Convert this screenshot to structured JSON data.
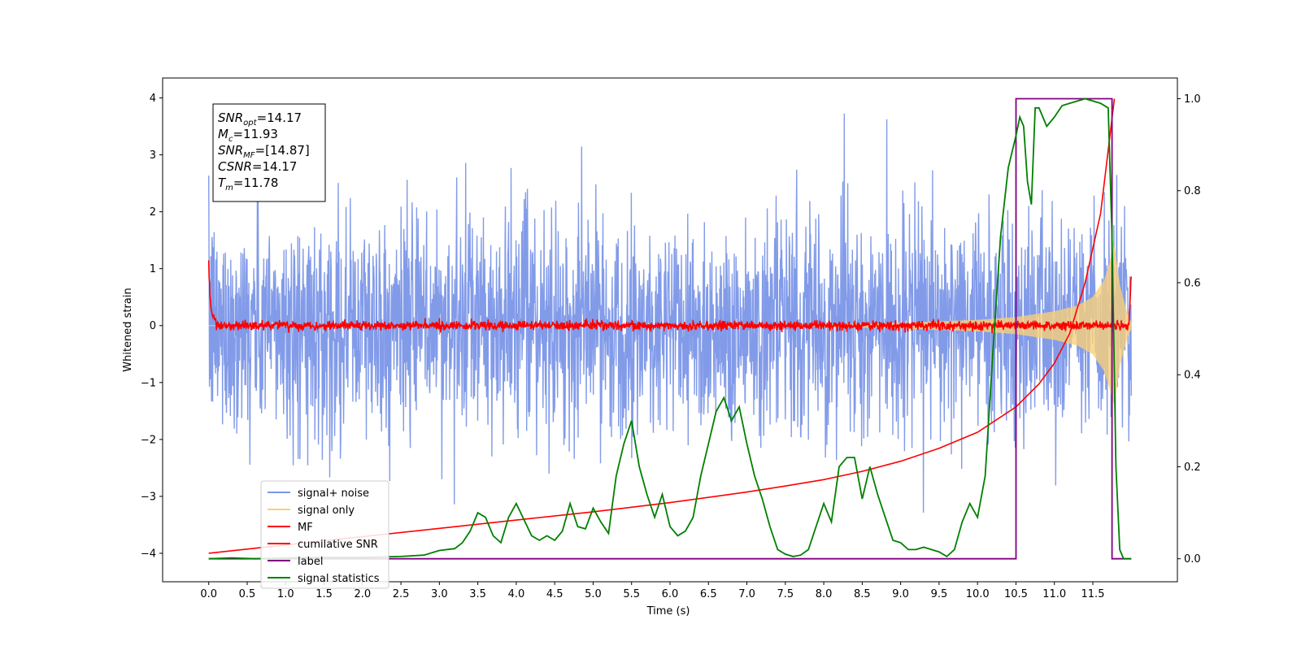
{
  "chart_data": {
    "type": "line",
    "xlabel": "Time (s)",
    "ylabel": "Whitened strain",
    "xlim": [
      -0.6,
      12.6
    ],
    "ylim": [
      -4.5,
      4.35
    ],
    "ylim_right": [
      -0.05,
      1.045
    ],
    "x_ticks": [
      "0.0",
      "0.5",
      "1.0",
      "1.5",
      "2.0",
      "2.5",
      "3.0",
      "3.5",
      "4.0",
      "4.5",
      "5.0",
      "5.5",
      "6.0",
      "6.5",
      "7.0",
      "7.5",
      "8.0",
      "8.5",
      "9.0",
      "9.5",
      "10.0",
      "10.5",
      "11.0",
      "11.5"
    ],
    "y_ticks_left": [
      "4",
      "3",
      "2",
      "1",
      "0",
      "−1",
      "−2",
      "−3",
      "−4"
    ],
    "y_ticks_right": [
      "1.0",
      "0.8",
      "0.6",
      "0.4",
      "0.2",
      "0.0"
    ],
    "grid": false,
    "legend_position": "lower-left",
    "info_box": [
      {
        "main": "SNR",
        "sub": "opt",
        "value": "=14.17"
      },
      {
        "main": "M",
        "sub": "c",
        "value": "=11.93"
      },
      {
        "main": "SNR",
        "sub": "MF",
        "value": "=[14.87]"
      },
      {
        "main": "CSNR",
        "sub": "",
        "value": "=14.17"
      },
      {
        "main": "T",
        "sub": "m",
        "value": "=11.78"
      }
    ],
    "series": [
      {
        "name": "signal+ noise",
        "color": "#7b96e8",
        "axis": "left",
        "amplitude_sd": 0.95,
        "x_range": [
          0.0,
          12.0
        ]
      },
      {
        "name": "signal only",
        "color": "#f8cf7a",
        "axis": "left",
        "envelope": {
          "t": [
            0,
            2,
            4,
            6,
            8,
            9,
            10,
            10.5,
            11,
            11.3,
            11.5,
            11.65,
            11.72,
            11.78,
            11.85,
            11.95,
            12.0
          ],
          "a": [
            0.0,
            0.0,
            0.0,
            0.0,
            0.02,
            0.05,
            0.1,
            0.15,
            0.25,
            0.35,
            0.5,
            0.8,
            1.1,
            1.4,
            0.7,
            0.2,
            0.05
          ]
        }
      },
      {
        "name": "MF",
        "color": "#ff0000",
        "axis": "left",
        "baseline": 0.0,
        "noise_sd": 0.04
      },
      {
        "name": "cumilative SNR",
        "color": "#ff0000",
        "axis": "right",
        "x": [
          0.0,
          1.0,
          2.0,
          3.0,
          4.0,
          5.0,
          6.0,
          7.0,
          7.5,
          8.0,
          8.5,
          9.0,
          9.5,
          10.0,
          10.5,
          10.8,
          11.0,
          11.2,
          11.4,
          11.6,
          11.78
        ],
        "y": [
          0.012,
          0.03,
          0.048,
          0.066,
          0.084,
          0.102,
          0.122,
          0.145,
          0.158,
          0.172,
          0.19,
          0.212,
          0.24,
          0.275,
          0.33,
          0.38,
          0.425,
          0.49,
          0.6,
          0.75,
          1.0
        ]
      },
      {
        "name": "label",
        "color": "#800080",
        "axis": "right",
        "x": [
          0.0,
          10.5,
          10.5,
          11.75,
          11.75,
          12.0
        ],
        "y": [
          0.0,
          0.0,
          1.0,
          1.0,
          0.0,
          0.0
        ]
      },
      {
        "name": "signal statistics",
        "color": "#008000",
        "axis": "right",
        "x": [
          0.0,
          0.3,
          0.6,
          1.0,
          1.5,
          2.0,
          2.5,
          2.8,
          3.0,
          3.2,
          3.3,
          3.4,
          3.5,
          3.6,
          3.7,
          3.8,
          3.9,
          4.0,
          4.1,
          4.2,
          4.3,
          4.4,
          4.5,
          4.6,
          4.65,
          4.7,
          4.8,
          4.9,
          5.0,
          5.1,
          5.2,
          5.3,
          5.4,
          5.5,
          5.6,
          5.7,
          5.8,
          5.9,
          6.0,
          6.1,
          6.2,
          6.3,
          6.4,
          6.5,
          6.6,
          6.7,
          6.8,
          6.9,
          7.0,
          7.1,
          7.2,
          7.3,
          7.4,
          7.5,
          7.6,
          7.7,
          7.8,
          7.9,
          8.0,
          8.1,
          8.2,
          8.3,
          8.4,
          8.5,
          8.6,
          8.7,
          8.8,
          8.9,
          9.0,
          9.1,
          9.2,
          9.3,
          9.4,
          9.5,
          9.6,
          9.7,
          9.8,
          9.9,
          10.0,
          10.1,
          10.2,
          10.3,
          10.4,
          10.5,
          10.55,
          10.6,
          10.65,
          10.7,
          10.75,
          10.8,
          10.9,
          11.0,
          11.1,
          11.2,
          11.4,
          11.6,
          11.7,
          11.75,
          11.8,
          11.85,
          11.9,
          12.0
        ],
        "y": [
          0.0,
          0.002,
          0.0,
          0.002,
          0.003,
          0.003,
          0.005,
          0.008,
          0.018,
          0.022,
          0.035,
          0.06,
          0.1,
          0.09,
          0.05,
          0.035,
          0.09,
          0.12,
          0.085,
          0.05,
          0.04,
          0.05,
          0.04,
          0.06,
          0.09,
          0.12,
          0.07,
          0.065,
          0.11,
          0.08,
          0.055,
          0.18,
          0.25,
          0.3,
          0.2,
          0.14,
          0.09,
          0.14,
          0.07,
          0.05,
          0.06,
          0.09,
          0.18,
          0.25,
          0.32,
          0.35,
          0.3,
          0.33,
          0.25,
          0.18,
          0.13,
          0.07,
          0.02,
          0.01,
          0.005,
          0.008,
          0.02,
          0.07,
          0.12,
          0.08,
          0.2,
          0.22,
          0.22,
          0.13,
          0.2,
          0.14,
          0.09,
          0.04,
          0.035,
          0.02,
          0.02,
          0.025,
          0.02,
          0.015,
          0.005,
          0.02,
          0.08,
          0.12,
          0.09,
          0.18,
          0.45,
          0.7,
          0.85,
          0.92,
          0.96,
          0.94,
          0.82,
          0.77,
          0.98,
          0.98,
          0.94,
          0.96,
          0.985,
          0.99,
          1.0,
          0.99,
          0.98,
          0.7,
          0.2,
          0.02,
          0.0,
          0.0
        ]
      }
    ]
  }
}
